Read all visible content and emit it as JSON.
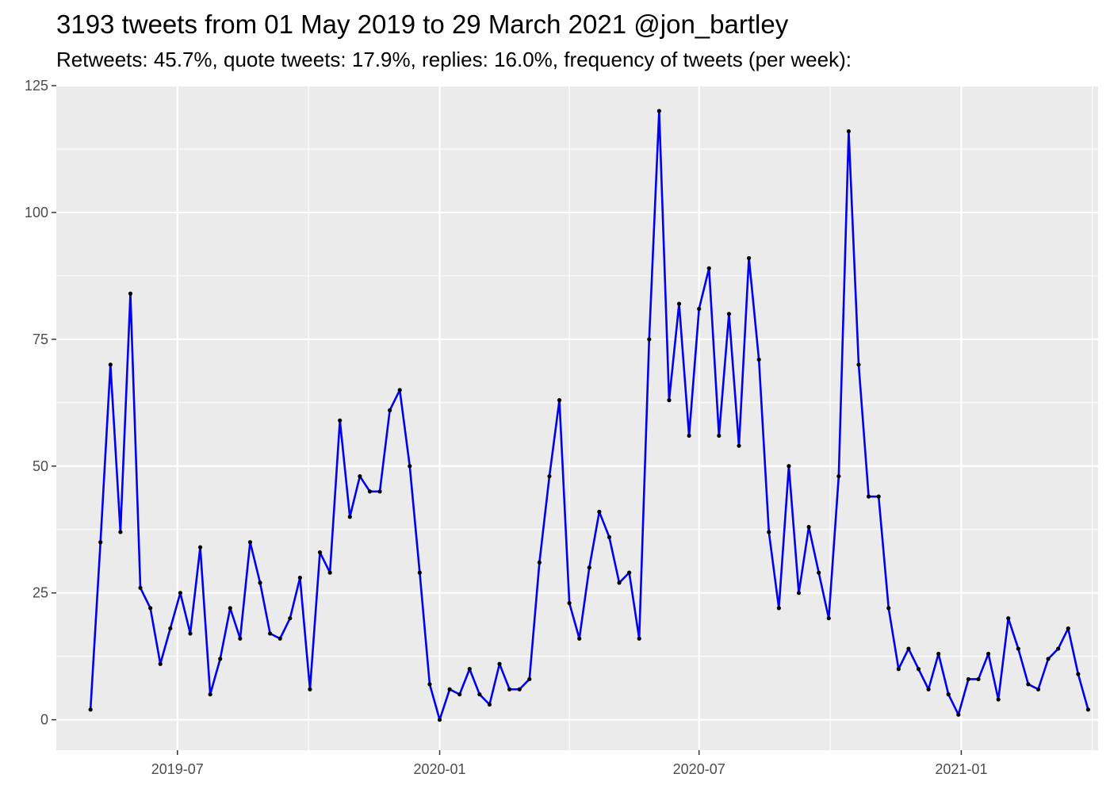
{
  "chart_data": {
    "type": "line",
    "title": "3193 tweets from 01 May 2019 to 29 March 2021 @jon_bartley",
    "subtitle": "Retweets: 45.7%, quote tweets: 17.9%, replies: 16.0%, frequency of tweets (per week):",
    "xlabel": "",
    "ylabel": "",
    "x_start": "2019-05-01",
    "x_step_days": 7,
    "xlim": [
      "2019-04-07",
      "2021-04-07"
    ],
    "ylim": [
      -6,
      125
    ],
    "x_ticks": [
      {
        "date": "2019-07-01",
        "label": "2019-07"
      },
      {
        "date": "2020-01-01",
        "label": "2020-01"
      },
      {
        "date": "2020-07-01",
        "label": "2020-07"
      },
      {
        "date": "2021-01-01",
        "label": "2021-01"
      }
    ],
    "y_ticks": [
      0,
      25,
      50,
      75,
      100,
      125
    ],
    "grid": true,
    "series": [
      {
        "color": "#0000ee",
        "point_color": "#000000",
        "values": [
          2,
          35,
          70,
          37,
          84,
          26,
          22,
          11,
          18,
          25,
          17,
          34,
          5,
          12,
          22,
          16,
          35,
          27,
          17,
          16,
          20,
          28,
          6,
          33,
          29,
          59,
          40,
          48,
          45,
          45,
          61,
          65,
          50,
          29,
          7,
          0,
          6,
          5,
          10,
          5,
          3,
          11,
          6,
          6,
          8,
          31,
          48,
          63,
          23,
          16,
          30,
          41,
          36,
          27,
          29,
          16,
          75,
          120,
          63,
          82,
          56,
          81,
          89,
          56,
          80,
          54,
          91,
          71,
          37,
          22,
          50,
          25,
          38,
          29,
          20,
          48,
          116,
          70,
          44,
          44,
          22,
          10,
          14,
          10,
          6,
          13,
          5,
          1,
          8,
          8,
          13,
          4,
          20,
          14,
          7,
          6,
          12,
          14,
          18,
          9,
          2
        ]
      }
    ]
  }
}
